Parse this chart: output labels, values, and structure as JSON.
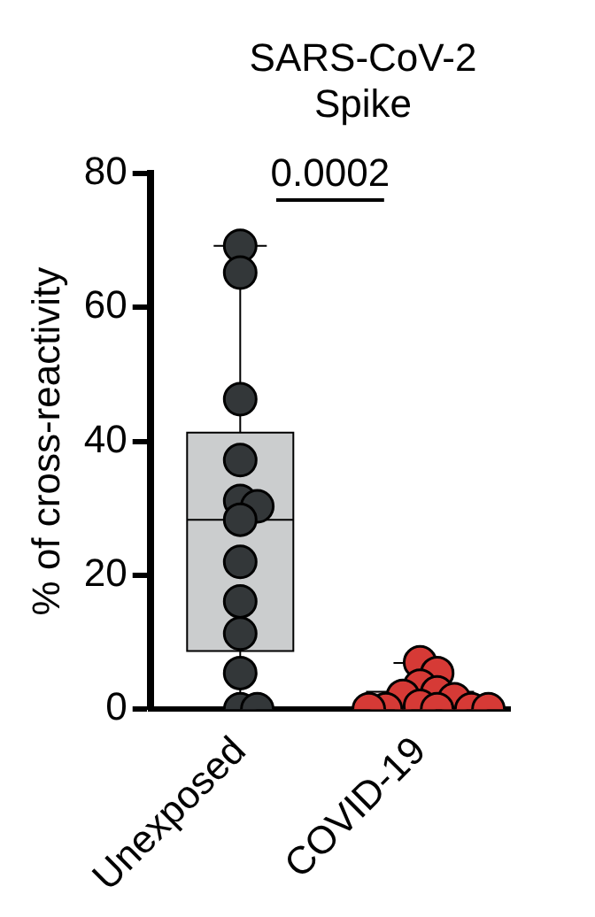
{
  "chart_data": {
    "type": "box",
    "title": "SARS-CoV-2 Spike",
    "ylabel": "% of cross-reactivity",
    "categories": [
      "Unexposed",
      "COVID-19"
    ],
    "ylim": [
      0,
      80
    ],
    "yticks": [
      0,
      20,
      40,
      60,
      80
    ],
    "grid": false,
    "legend": false,
    "marker": "circle",
    "annotations": [
      "0.0002"
    ],
    "series": [
      {
        "type": "box",
        "colors": [
          "#cbcdce",
          "#e6cfcf"
        ],
        "boxes": [
          {
            "low": 0,
            "q1": 8.7,
            "median": 28.3,
            "q3": 41.3,
            "high": 69.2
          },
          {
            "low": 0,
            "q1": 0,
            "median": 0.5,
            "q3": 2.6,
            "high": 6.9
          }
        ]
      },
      {
        "type": "scatter",
        "color": "#333739",
        "x": [
          "Unexposed",
          "Unexposed",
          "Unexposed",
          "Unexposed",
          "Unexposed",
          "Unexposed",
          "Unexposed",
          "Unexposed",
          "Unexposed",
          "Unexposed",
          "Unexposed",
          "Unexposed",
          "Unexposed"
        ],
        "values": [
          69.2,
          65.2,
          46.3,
          37.2,
          31.1,
          30.3,
          28.3,
          22,
          16.1,
          11.3,
          5.4,
          0,
          0
        ]
      },
      {
        "type": "scatter",
        "color": "#d63a36",
        "x": [
          "COVID-19",
          "COVID-19",
          "COVID-19",
          "COVID-19",
          "COVID-19",
          "COVID-19",
          "COVID-19",
          "COVID-19",
          "COVID-19",
          "COVID-19",
          "COVID-19",
          "COVID-19"
        ],
        "values": [
          7,
          5.4,
          3.5,
          2.5,
          2,
          1.5,
          0.5,
          0,
          0,
          0,
          0,
          0
        ]
      }
    ]
  }
}
